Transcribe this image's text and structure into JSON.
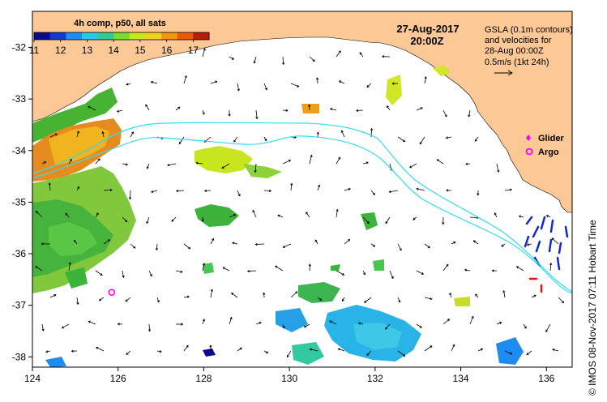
{
  "map": {
    "colorbar": {
      "title": "4h comp, p50, all sats",
      "ticks": [
        "11",
        "12",
        "13",
        "14",
        "15",
        "16",
        "17"
      ],
      "range": [
        11,
        17.6
      ],
      "colors": [
        "#0a0a8c",
        "#1437d2",
        "#1e8cf0",
        "#28c8e6",
        "#32c896",
        "#78dc32",
        "#c8e61e",
        "#f0d21e",
        "#f09614",
        "#e65a0a",
        "#b41e0a"
      ]
    },
    "date": "27-Aug-2017",
    "time": "20:00Z",
    "gsla": {
      "line1": "GSLA (0.1m contours)",
      "line2": "and velocities for",
      "line3": "28-Aug 00:00Z",
      "scale_label": "0.5m/s (1kt 24h)"
    },
    "legend": {
      "glider": "Glider",
      "argo": "Argo",
      "glider_color": "#ff00ff",
      "argo_color": "#ff00ff"
    },
    "axes": {
      "x_ticks": [
        "124",
        "126",
        "128",
        "130",
        "132",
        "134",
        "136"
      ],
      "y_ticks": [
        "-32",
        "-33",
        "-34",
        "-35",
        "-36",
        "-37",
        "-38"
      ],
      "lon_range": [
        124,
        136.6
      ],
      "lat_range": [
        -38.2,
        -31.3
      ]
    },
    "credit": "© IMOS 08-Nov-2017 07:11 Hobart Time",
    "colors": {
      "land": "#fcc896",
      "sea": "#ffffff",
      "contour": "#33dcef",
      "arrows": "#000000",
      "argo_marker": "#ff00ff"
    },
    "argo_float": {
      "lon": 125.85,
      "lat": -36.75
    }
  }
}
